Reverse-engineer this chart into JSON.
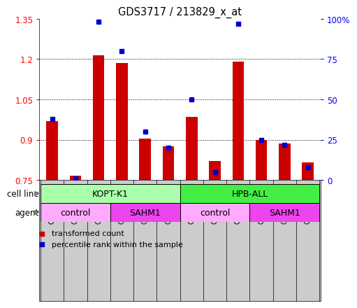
{
  "title": "GDS3717 / 213829_x_at",
  "samples": [
    "GSM455115",
    "GSM455116",
    "GSM455117",
    "GSM455121",
    "GSM455122",
    "GSM455123",
    "GSM455118",
    "GSM455119",
    "GSM455120",
    "GSM455124",
    "GSM455125",
    "GSM455126"
  ],
  "transformed_count": [
    0.97,
    0.765,
    1.215,
    1.185,
    0.905,
    0.875,
    0.985,
    0.82,
    1.19,
    0.9,
    0.885,
    0.815
  ],
  "percentile_rank": [
    38,
    1,
    98,
    80,
    30,
    20,
    50,
    5,
    97,
    25,
    22,
    8
  ],
  "ylim": [
    0.75,
    1.35
  ],
  "yticks_left": [
    0.75,
    0.9,
    1.05,
    1.2,
    1.35
  ],
  "yticks_right": [
    0,
    25,
    50,
    75,
    100
  ],
  "bar_color": "#cc0000",
  "dot_color": "#0000cc",
  "cell_lines": [
    {
      "label": "KOPT-K1",
      "start": 0,
      "end": 5,
      "color": "#aaffaa"
    },
    {
      "label": "HPB-ALL",
      "start": 6,
      "end": 11,
      "color": "#44ee44"
    }
  ],
  "agents": [
    {
      "label": "control",
      "start": 0,
      "end": 2,
      "color": "#ffaaff"
    },
    {
      "label": "SAHM1",
      "start": 3,
      "end": 5,
      "color": "#ee44ee"
    },
    {
      "label": "control",
      "start": 6,
      "end": 8,
      "color": "#ffaaff"
    },
    {
      "label": "SAHM1",
      "start": 9,
      "end": 11,
      "color": "#ee44ee"
    }
  ],
  "cell_line_label": "cell line",
  "agent_label": "agent",
  "legend1": "transformed count",
  "legend2": "percentile rank within the sample",
  "tick_bg_color": "#cccccc",
  "fig_bg": "#ffffff",
  "gridline_color": "#000000",
  "gridline_lw": 0.7,
  "bar_width": 0.5
}
